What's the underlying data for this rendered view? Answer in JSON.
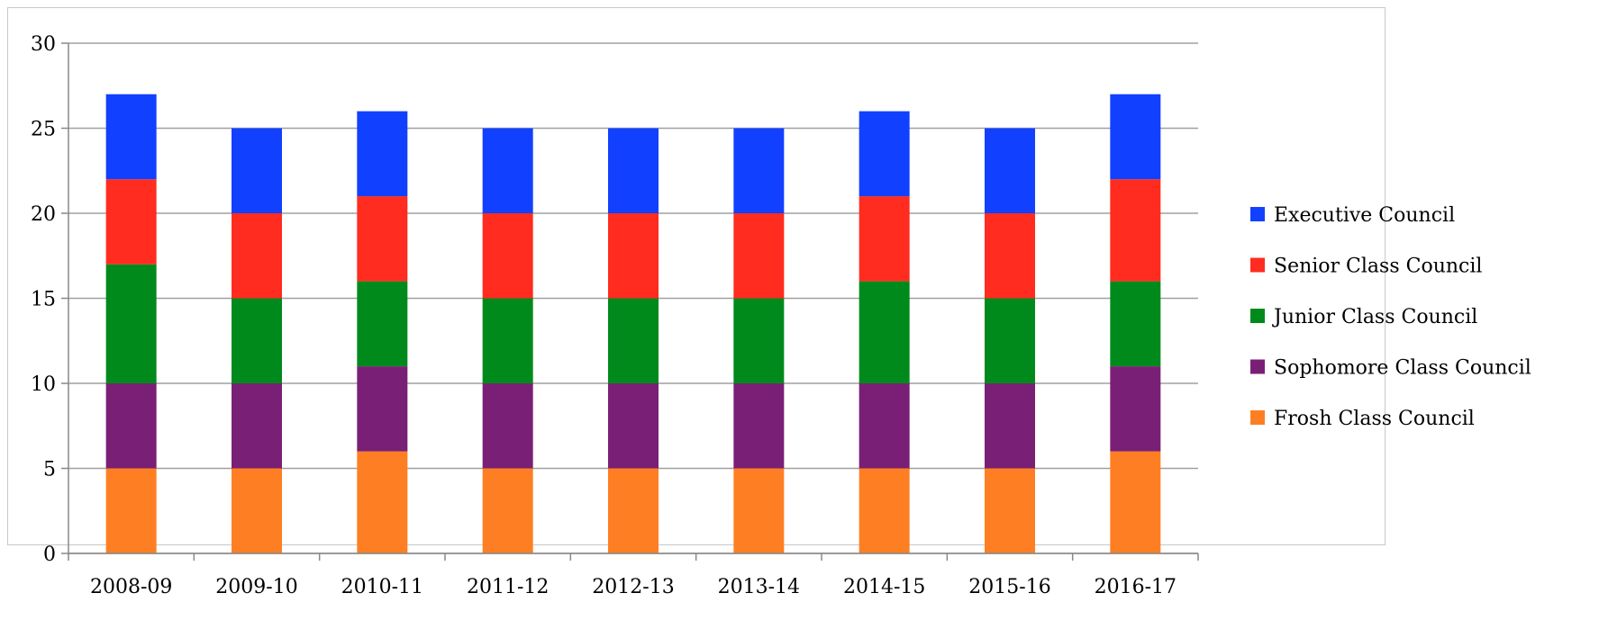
{
  "chart_data": {
    "type": "bar",
    "stacked": true,
    "categories": [
      "2008-09",
      "2009-10",
      "2010-11",
      "2011-12",
      "2012-13",
      "2013-14",
      "2014-15",
      "2015-16",
      "2016-17"
    ],
    "series": [
      {
        "name": "Frosh Class Council",
        "color": "#fe7f23",
        "values": [
          5,
          5,
          6,
          5,
          5,
          5,
          5,
          5,
          6
        ]
      },
      {
        "name": "Sophomore Class Council",
        "color": "#7a1f76",
        "values": [
          5,
          5,
          5,
          5,
          5,
          5,
          5,
          5,
          5
        ]
      },
      {
        "name": "Junior Class Council",
        "color": "#008a1c",
        "values": [
          7,
          5,
          5,
          5,
          5,
          5,
          6,
          5,
          5
        ]
      },
      {
        "name": "Senior Class Council",
        "color": "#ff2c1f",
        "values": [
          5,
          5,
          5,
          5,
          5,
          5,
          5,
          5,
          6
        ]
      },
      {
        "name": "Executive Council",
        "color": "#1240ff",
        "values": [
          5,
          5,
          5,
          5,
          5,
          5,
          5,
          5,
          5
        ]
      }
    ],
    "title": "",
    "xlabel": "",
    "ylabel": "",
    "ylim": [
      0,
      30
    ],
    "yticks": [
      0,
      5,
      10,
      15,
      20,
      25,
      30
    ],
    "grid": true,
    "legend_position": "right",
    "legend_order": [
      "Executive Council",
      "Senior Class Council",
      "Junior Class Council",
      "Sophomore Class Council",
      "Frosh Class Council"
    ]
  }
}
